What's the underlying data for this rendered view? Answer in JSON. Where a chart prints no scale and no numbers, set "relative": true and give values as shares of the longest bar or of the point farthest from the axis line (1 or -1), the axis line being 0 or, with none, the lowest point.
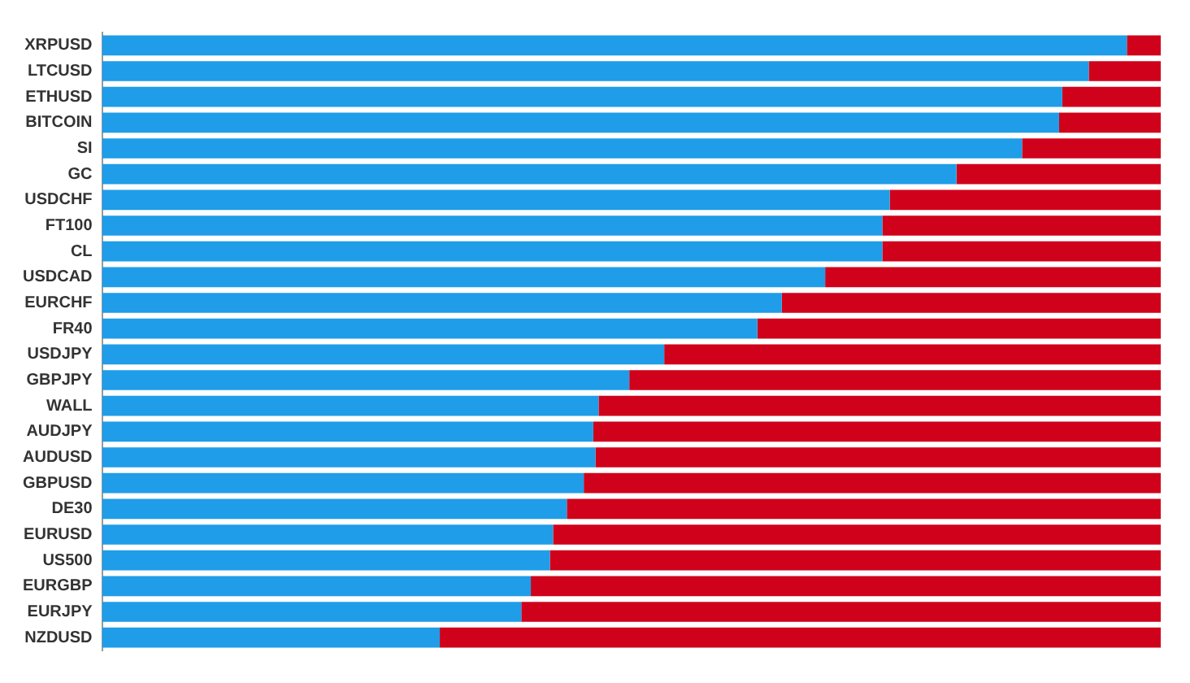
{
  "chart_data": {
    "type": "bar",
    "orientation": "horizontal",
    "stacked": true,
    "relative": true,
    "legend": false,
    "categories": [
      "XRPUSD",
      "LTCUSD",
      "ETHUSD",
      "BITCOIN",
      "SI",
      "GC",
      "USDCHF",
      "FT100",
      "CL",
      "USDCAD",
      "EURCHF",
      "FR40",
      "USDJPY",
      "GBPJPY",
      "WALL",
      "AUDJPY",
      "AUDUSD",
      "GBPUSD",
      "DE30",
      "EURUSD",
      "US500",
      "EURGBP",
      "EURJPY",
      "NZDUSD"
    ],
    "series": [
      {
        "color": "#1f9de8",
        "values": [
          0.968,
          0.932,
          0.907,
          0.904,
          0.869,
          0.807,
          0.744,
          0.737,
          0.737,
          0.683,
          0.642,
          0.619,
          0.531,
          0.498,
          0.469,
          0.464,
          0.466,
          0.455,
          0.439,
          0.426,
          0.423,
          0.405,
          0.396,
          0.319
        ]
      },
      {
        "color": "#d0021b",
        "values": [
          0.032,
          0.068,
          0.093,
          0.096,
          0.131,
          0.193,
          0.256,
          0.263,
          0.263,
          0.317,
          0.358,
          0.381,
          0.469,
          0.502,
          0.531,
          0.536,
          0.534,
          0.545,
          0.561,
          0.574,
          0.577,
          0.595,
          0.604,
          0.681
        ]
      }
    ]
  }
}
